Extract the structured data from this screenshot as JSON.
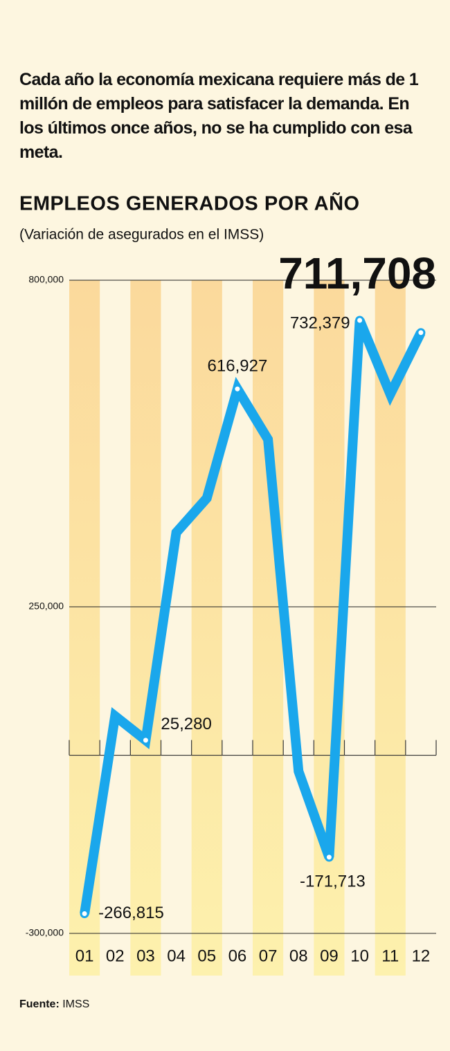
{
  "intro": "Cada año la economía mexicana requiere más de 1 millón de empleos para satisfacer la demanda. En los últimos once años, no se ha cumplido con esa meta.",
  "chart_data": {
    "type": "line",
    "title": "EMPLEOS GENERADOS POR AÑO",
    "subtitle": "(Variación de asegurados en el IMSS)",
    "categories": [
      "01",
      "02",
      "03",
      "04",
      "05",
      "06",
      "07",
      "08",
      "09",
      "10",
      "11",
      "12"
    ],
    "values": [
      -266815,
      66000,
      25280,
      375000,
      433000,
      616927,
      532000,
      -27000,
      -171713,
      732379,
      608000,
      711708
    ],
    "value_labels": [
      "-266,815",
      null,
      "25,280",
      null,
      null,
      "616,927",
      null,
      null,
      "-171,713",
      "732,379",
      null,
      "711,708"
    ],
    "color": "#1aa7ec",
    "ylim": [
      -300000,
      800000
    ],
    "yticks": [
      {
        "value": -300000,
        "label": "-300,000"
      },
      {
        "value": 250000,
        "label": "250,000"
      },
      {
        "value": 800000,
        "label": "800,000"
      }
    ],
    "grid": true
  },
  "source_label": "Fuente:",
  "source": "IMSS"
}
